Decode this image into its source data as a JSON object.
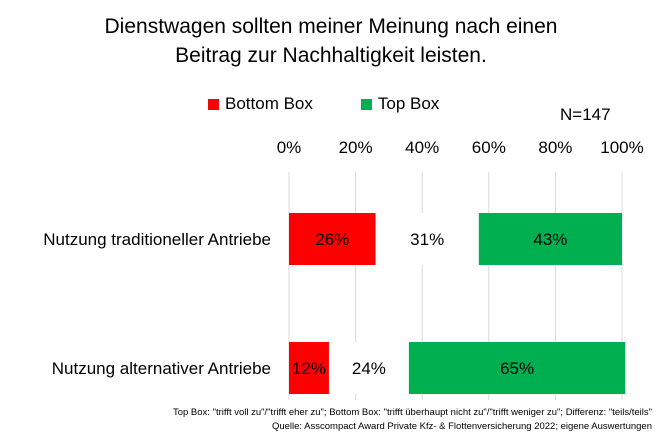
{
  "chart_data": {
    "type": "bar",
    "stacked": true,
    "orientation": "horizontal",
    "title_lines": [
      "Dienstwagen sollten meiner Meinung nach einen",
      "Beitrag zur Nachhaltigkeit leisten."
    ],
    "sample_size": "N=147",
    "xlim": [
      0,
      100
    ],
    "x_ticks": [
      "0%",
      "20%",
      "40%",
      "60%",
      "80%",
      "100%"
    ],
    "categories": [
      "Nutzung traditioneller Antriebe",
      "Nutzung alternativer Antriebe"
    ],
    "series": [
      {
        "name": "Bottom Box",
        "values": [
          26,
          12
        ],
        "labels": [
          "26%",
          "12%"
        ],
        "color": "#ff0000",
        "in_legend": true
      },
      {
        "name": "Differenz (teils/teils)",
        "values": [
          31,
          24
        ],
        "labels": [
          "31%",
          "24%"
        ],
        "color": "#ffffff",
        "in_legend": false
      },
      {
        "name": "Top Box",
        "values": [
          43,
          65
        ],
        "labels": [
          "43%",
          "65%"
        ],
        "color": "#00b050",
        "in_legend": true
      }
    ],
    "legend": [
      "Bottom Box",
      "Top Box"
    ],
    "legend_position": "top",
    "grid": true,
    "footnotes": [
      "Top Box: \"trifft voll zu\"/\"trifft eher zu\"; Bottom Box: \"trifft überhaupt nicht zu\"/\"trifft weniger zu\"; Differenz: \"teils/teils\"",
      "Quelle: Asscompact Award Private Kfz- & Flottenversicherung 2022; eigene Auswertungen"
    ]
  }
}
